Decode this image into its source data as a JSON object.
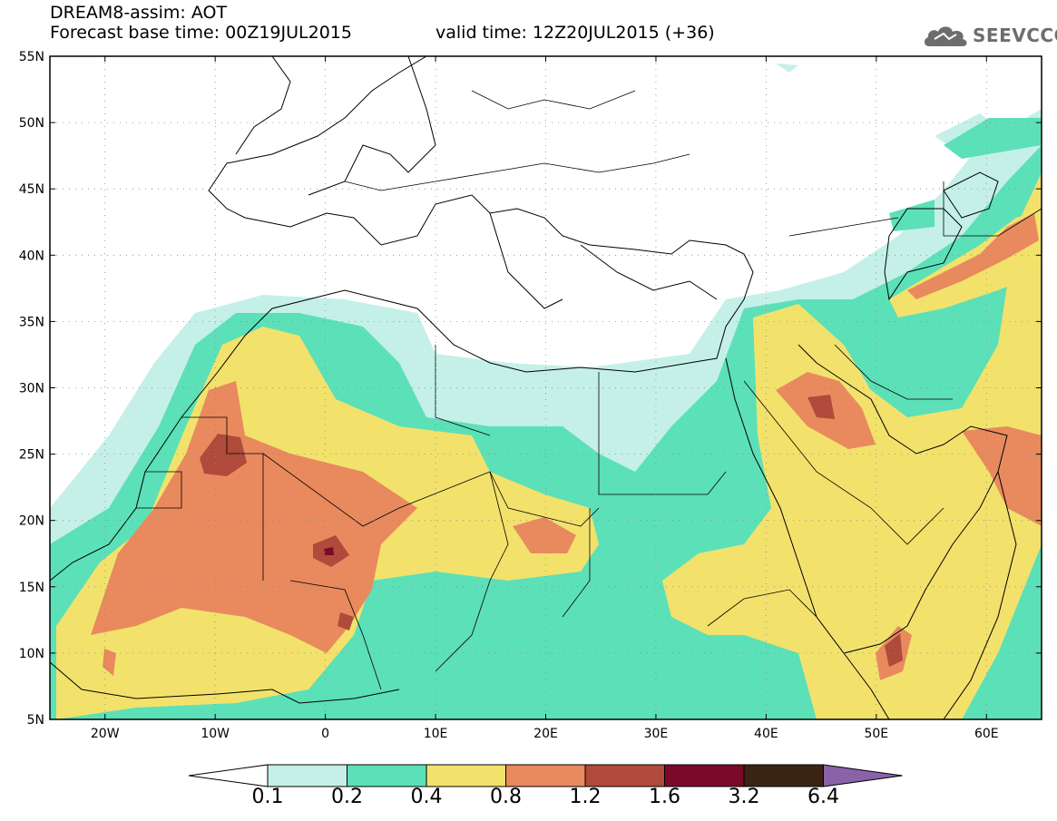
{
  "header": {
    "model_line": "DREAM8-assim: AOT",
    "base_time": "Forecast base time: 00Z19JUL2015",
    "valid_time": "valid time: 12Z20JUL2015 (+36)"
  },
  "logo": {
    "text": "SEEVCCC",
    "icon": "cloud-icon"
  },
  "map": {
    "lon_range": [
      -25,
      65
    ],
    "lat_range": [
      5,
      55
    ],
    "lat_ticks": [
      {
        "value": 55,
        "label": "55N"
      },
      {
        "value": 50,
        "label": "50N"
      },
      {
        "value": 45,
        "label": "45N"
      },
      {
        "value": 40,
        "label": "40N"
      },
      {
        "value": 35,
        "label": "35N"
      },
      {
        "value": 30,
        "label": "30N"
      },
      {
        "value": 25,
        "label": "25N"
      },
      {
        "value": 20,
        "label": "20N"
      },
      {
        "value": 15,
        "label": "15N"
      },
      {
        "value": 10,
        "label": "10N"
      },
      {
        "value": 5,
        "label": "5N"
      }
    ],
    "lon_ticks": [
      {
        "value": -20,
        "label": "20W"
      },
      {
        "value": -10,
        "label": "10W"
      },
      {
        "value": 0,
        "label": "0"
      },
      {
        "value": 10,
        "label": "10E"
      },
      {
        "value": 20,
        "label": "20E"
      },
      {
        "value": 30,
        "label": "30E"
      },
      {
        "value": 40,
        "label": "40E"
      },
      {
        "value": 50,
        "label": "50E"
      },
      {
        "value": 60,
        "label": "60E"
      }
    ],
    "grid": true
  },
  "colorbar": {
    "colors": [
      "#c4f0e8",
      "#5ce0b8",
      "#f2e26c",
      "#e88a5e",
      "#b04a3a",
      "#7a0a28",
      "#3c2414",
      "#8a62a8"
    ],
    "labels": [
      "0.1",
      "0.2",
      "0.4",
      "0.8",
      "1.2",
      "1.6",
      "3.2",
      "6.4"
    ]
  }
}
